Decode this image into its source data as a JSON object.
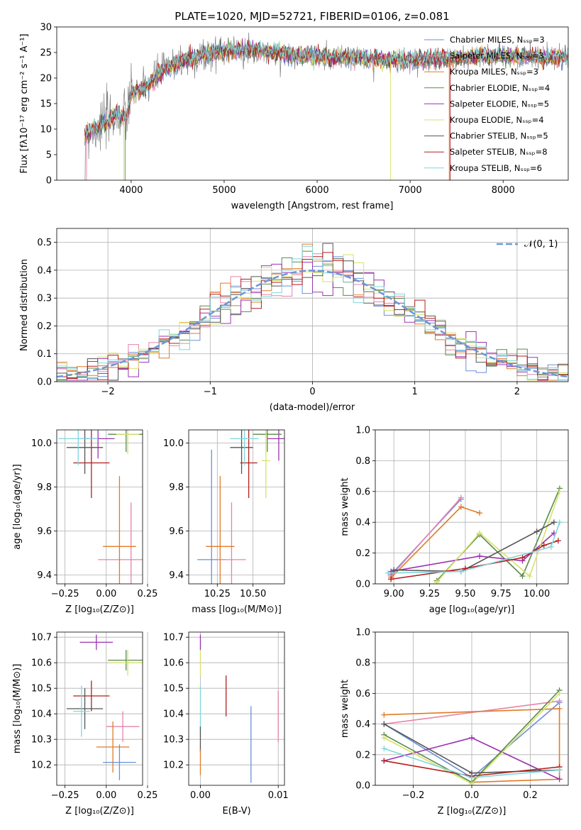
{
  "colors": {
    "chabrier_miles": "#6b8fd6",
    "salpeter_miles": "#e683a9",
    "kroupa_miles": "#e07b28",
    "chabrier_elodie": "#5a8a4a",
    "salpeter_elodie": "#9b33b0",
    "kroupa_elodie": "#d6e26a",
    "chabrier_stelib": "#555555",
    "salpeter_stelib": "#b41e1e",
    "kroupa_stelib": "#7fd6dc"
  },
  "chart_data": [
    {
      "id": "spectrum",
      "type": "line",
      "title": "PLATE=1020, MJD=52721, FIBERID=0106, z=0.081",
      "xlabel": "wavelength [Angstrom, rest frame]",
      "ylabel": "Flux [fλ10⁻¹⁷ erg cm⁻² s⁻¹ A⁻¹]",
      "xlim": [
        3200,
        8700
      ],
      "ylim": [
        0,
        30
      ],
      "xticks": [
        "4000",
        "5000",
        "6000",
        "7000",
        "8000"
      ],
      "yticks": [
        "0",
        "5",
        "10",
        "15",
        "20",
        "25",
        "30"
      ],
      "legend_position": "top-right",
      "envelope": {
        "x": [
          3500,
          3700,
          3850,
          3950,
          4000,
          4150,
          4300,
          4500,
          4700,
          4900,
          5100,
          5300,
          5500,
          5800,
          6100,
          6400,
          6700,
          7000,
          7300,
          7600,
          8000,
          8400,
          8700
        ],
        "y": [
          9,
          11,
          13,
          12,
          17,
          18,
          21,
          23,
          24,
          25,
          25.5,
          25.5,
          25,
          24.5,
          24,
          24,
          23.5,
          23.5,
          23.8,
          24,
          24.5,
          24,
          24
        ]
      },
      "series": [
        {
          "name": "Chabrier MILES, N_SSP=3",
          "color_key": "chabrier_miles"
        },
        {
          "name": "Salpeter MILES, N_SSP=3",
          "color_key": "salpeter_miles"
        },
        {
          "name": "Kroupa MILES, N_SSP=3",
          "color_key": "kroupa_miles"
        },
        {
          "name": "Chabrier ELODIE, N_SSP=4",
          "color_key": "chabrier_elodie"
        },
        {
          "name": "Salpeter ELODIE, N_SSP=5",
          "color_key": "salpeter_elodie"
        },
        {
          "name": "Kroupa ELODIE, N_SSP=4",
          "color_key": "kroupa_elodie"
        },
        {
          "name": "Chabrier STELIB, N_SSP=5",
          "color_key": "chabrier_stelib"
        },
        {
          "name": "Salpeter STELIB, N_SSP=8",
          "color_key": "salpeter_stelib"
        },
        {
          "name": "Kroupa STELIB, N_SSP=6",
          "color_key": "kroupa_stelib"
        }
      ]
    },
    {
      "id": "residuals",
      "type": "bar",
      "xlabel": "(data-model)/error",
      "ylabel": "Normed distribution",
      "xlim": [
        -2.5,
        2.5
      ],
      "ylim": [
        0,
        0.55
      ],
      "xticks": [
        "−2",
        "−1",
        "0",
        "1",
        "2"
      ],
      "yticks": [
        "0.0",
        "0.1",
        "0.2",
        "0.3",
        "0.4",
        "0.5"
      ],
      "legend": "𝒩(0, 1)",
      "legend_position": "top-right",
      "bin_width": 0.1
    },
    {
      "id": "age_vs_Z",
      "type": "scatter",
      "xlabel": "Z [log₁₀(Z/Z⊙)]",
      "ylabel": "age  [log₁₀(age/yr)]",
      "xlim": [
        -0.3,
        0.22
      ],
      "ylim": [
        9.36,
        10.06
      ],
      "xticks": [
        "−0.25",
        "0.00",
        "0.25"
      ],
      "yticks": [
        "9.4",
        "9.6",
        "9.8",
        "10.0"
      ],
      "points": [
        {
          "x": 0.15,
          "y": 9.47,
          "xerr": 0.2,
          "yerr": 0.26,
          "c": "salpeter_miles"
        },
        {
          "x": 0.08,
          "y": 9.53,
          "xerr": 0.1,
          "yerr": 0.32,
          "c": "kroupa_miles"
        },
        {
          "x": -0.09,
          "y": 9.91,
          "xerr": 0.11,
          "yerr": 0.16,
          "c": "salpeter_stelib"
        },
        {
          "x": -0.13,
          "y": 9.98,
          "xerr": 0.11,
          "yerr": 0.12,
          "c": "chabrier_stelib"
        },
        {
          "x": -0.05,
          "y": 10.02,
          "xerr": 0.1,
          "yerr": 0.09,
          "c": "salpeter_elodie"
        },
        {
          "x": -0.17,
          "y": 10.02,
          "xerr": 0.12,
          "yerr": 0.12,
          "c": "kroupa_stelib"
        },
        {
          "x": 0.12,
          "y": 10.04,
          "xerr": 0.11,
          "yerr": 0.08,
          "c": "chabrier_elodie"
        },
        {
          "x": 0.13,
          "y": 10.04,
          "xerr": 0.07,
          "yerr": 0.09,
          "c": "kroupa_elodie"
        }
      ]
    },
    {
      "id": "age_vs_mass",
      "type": "scatter",
      "xlabel": "mass [log₁₀(M/M⊙)]",
      "ylabel": "",
      "xlim": [
        10.05,
        10.72
      ],
      "ylim": [
        9.36,
        10.06
      ],
      "xticks": [
        "10.25",
        "10.50"
      ],
      "yticks": [
        "9.4",
        "9.6",
        "9.8",
        "10.0"
      ],
      "points": [
        {
          "x": 10.21,
          "y": 9.47,
          "xerr": 0.1,
          "yerr": 0.5,
          "c": "chabrier_miles"
        },
        {
          "x": 10.35,
          "y": 9.47,
          "xerr": 0.1,
          "yerr": 0.26,
          "c": "salpeter_miles"
        },
        {
          "x": 10.27,
          "y": 9.53,
          "xerr": 0.1,
          "yerr": 0.32,
          "c": "kroupa_miles"
        },
        {
          "x": 10.47,
          "y": 9.91,
          "xerr": 0.06,
          "yerr": 0.16,
          "c": "salpeter_stelib"
        },
        {
          "x": 10.42,
          "y": 9.98,
          "xerr": 0.08,
          "yerr": 0.12,
          "c": "chabrier_stelib"
        },
        {
          "x": 10.68,
          "y": 10.02,
          "xerr": 0.08,
          "yerr": 0.1,
          "c": "salpeter_elodie"
        },
        {
          "x": 10.44,
          "y": 10.02,
          "xerr": 0.1,
          "yerr": 0.12,
          "c": "kroupa_stelib"
        },
        {
          "x": 10.6,
          "y": 10.04,
          "xerr": 0.1,
          "yerr": 0.08,
          "c": "chabrier_elodie"
        },
        {
          "x": 10.59,
          "y": 9.92,
          "xerr": 0.03,
          "yerr": 0.17,
          "c": "kroupa_elodie"
        }
      ]
    },
    {
      "id": "weight_vs_age",
      "type": "line",
      "xlabel": "age  [log₁₀(age/yr)]",
      "ylabel": "mass weight",
      "xlim": [
        8.87,
        10.22
      ],
      "ylim": [
        0,
        1
      ],
      "xticks": [
        "9.00",
        "9.25",
        "9.50",
        "9.75",
        "10.00"
      ],
      "yticks": [
        "0.0",
        "0.2",
        "0.4",
        "0.6",
        "0.8",
        "1.0"
      ],
      "series": [
        {
          "c": "chabrier_miles",
          "x": [
            8.98,
            9.47
          ],
          "y": [
            0.06,
            0.55
          ]
        },
        {
          "c": "salpeter_miles",
          "x": [
            8.98,
            9.47
          ],
          "y": [
            0.05,
            0.56
          ]
        },
        {
          "c": "kroupa_miles",
          "x": [
            8.98,
            9.47,
            9.6
          ],
          "y": [
            0.04,
            0.5,
            0.46
          ]
        },
        {
          "c": "chabrier_elodie",
          "x": [
            9.3,
            9.6,
            9.9,
            10.16
          ],
          "y": [
            0.02,
            0.32,
            0.05,
            0.62
          ]
        },
        {
          "c": "salpeter_elodie",
          "x": [
            8.98,
            9.6,
            9.9,
            10.12
          ],
          "y": [
            0.08,
            0.18,
            0.15,
            0.33
          ]
        },
        {
          "c": "kroupa_elodie",
          "x": [
            9.3,
            9.6,
            9.95,
            10.16
          ],
          "y": [
            0.01,
            0.33,
            0.05,
            0.6
          ]
        },
        {
          "c": "chabrier_stelib",
          "x": [
            9.0,
            9.47,
            10.0,
            10.12
          ],
          "y": [
            0.09,
            0.08,
            0.34,
            0.4
          ]
        },
        {
          "c": "salpeter_stelib",
          "x": [
            8.98,
            9.5,
            9.9,
            10.05,
            10.15
          ],
          "y": [
            0.03,
            0.1,
            0.17,
            0.25,
            0.28
          ]
        },
        {
          "c": "kroupa_stelib",
          "x": [
            8.96,
            9.47,
            10.1,
            10.16
          ],
          "y": [
            0.07,
            0.08,
            0.24,
            0.4
          ]
        }
      ]
    },
    {
      "id": "mass_vs_Z",
      "type": "scatter",
      "xlabel": "Z [log₁₀(Z/Z⊙)]",
      "ylabel": "mass [log₁₀(M/M⊙)]",
      "xlim": [
        -0.3,
        0.22
      ],
      "ylim": [
        10.12,
        10.72
      ],
      "xticks": [
        "−0.25",
        "0.00",
        "0.25"
      ],
      "yticks": [
        "10.2",
        "10.3",
        "10.4",
        "10.5",
        "10.6",
        "10.7"
      ],
      "points": [
        {
          "x": -0.06,
          "y": 10.68,
          "xerr": 0.1,
          "yerr": 0.03,
          "c": "salpeter_elodie"
        },
        {
          "x": 0.12,
          "y": 10.61,
          "xerr": 0.11,
          "yerr": 0.04,
          "c": "chabrier_elodie"
        },
        {
          "x": 0.13,
          "y": 10.6,
          "xerr": 0.11,
          "yerr": 0.05,
          "c": "kroupa_elodie"
        },
        {
          "x": -0.09,
          "y": 10.47,
          "xerr": 0.11,
          "yerr": 0.06,
          "c": "salpeter_stelib"
        },
        {
          "x": -0.13,
          "y": 10.42,
          "xerr": 0.11,
          "yerr": 0.08,
          "c": "chabrier_stelib"
        },
        {
          "x": 0.1,
          "y": 10.35,
          "xerr": 0.1,
          "yerr": 0.06,
          "c": "salpeter_miles"
        },
        {
          "x": -0.15,
          "y": 10.41,
          "xerr": 0.05,
          "yerr": 0.1,
          "c": "kroupa_stelib"
        },
        {
          "x": 0.04,
          "y": 10.27,
          "xerr": 0.1,
          "yerr": 0.1,
          "c": "kroupa_miles"
        },
        {
          "x": 0.08,
          "y": 10.21,
          "xerr": 0.1,
          "yerr": 0.07,
          "c": "chabrier_miles"
        }
      ]
    },
    {
      "id": "mass_vs_ebv",
      "type": "scatter",
      "xlabel": "E(B-V)",
      "ylabel": "",
      "xlim": [
        -0.0015,
        0.0108
      ],
      "ylim": [
        10.12,
        10.72
      ],
      "xticks": [
        "0.00",
        "0.01"
      ],
      "yticks": [
        "10.2",
        "10.3",
        "10.4",
        "10.5",
        "10.6",
        "10.7"
      ],
      "points": [
        {
          "x": 0.0,
          "y": 10.68,
          "xerr": 0,
          "yerr": 0.03,
          "c": "salpeter_elodie"
        },
        {
          "x": 0.0,
          "y": 10.6,
          "xerr": 0,
          "yerr": 0.05,
          "c": "kroupa_elodie"
        },
        {
          "x": 0.0,
          "y": 10.41,
          "xerr": 0,
          "yerr": 0.1,
          "c": "kroupa_stelib"
        },
        {
          "x": 0.0,
          "y": 10.3,
          "xerr": 0,
          "yerr": 0.05,
          "c": "chabrier_stelib"
        },
        {
          "x": 0.0,
          "y": 10.21,
          "xerr": 0,
          "yerr": 0.05,
          "c": "kroupa_miles"
        },
        {
          "x": 0.0033,
          "y": 10.47,
          "xerr": 0,
          "yerr": 0.08,
          "c": "salpeter_stelib"
        },
        {
          "x": 0.0065,
          "y": 10.28,
          "xerr": 0,
          "yerr": 0.15,
          "c": "chabrier_miles"
        },
        {
          "x": 0.01,
          "y": 10.39,
          "xerr": 0,
          "yerr": 0.1,
          "c": "salpeter_miles"
        }
      ]
    },
    {
      "id": "weight_vs_Z",
      "type": "line",
      "xlabel": "Z [log₁₀(Z/Z⊙)]",
      "ylabel": "mass weight",
      "xlim": [
        -0.33,
        0.33
      ],
      "ylim": [
        0,
        1
      ],
      "xticks": [
        "−0.2",
        "0.0",
        "0.2"
      ],
      "yticks": [
        "0.0",
        "0.2",
        "0.4",
        "0.6",
        "0.8",
        "1.0"
      ],
      "series": [
        {
          "c": "chabrier_miles",
          "x": [
            -0.3,
            0.0,
            0.3
          ],
          "y": [
            0.4,
            0.05,
            0.54
          ]
        },
        {
          "c": "salpeter_miles",
          "x": [
            -0.3,
            0.3
          ],
          "y": [
            0.4,
            0.55
          ]
        },
        {
          "c": "kroupa_miles",
          "x": [
            -0.3,
            0.3,
            0.3,
            0.0
          ],
          "y": [
            0.46,
            0.5,
            0.04,
            0.02
          ]
        },
        {
          "c": "chabrier_elodie",
          "x": [
            -0.3,
            0.0,
            0.3
          ],
          "y": [
            0.33,
            0.02,
            0.62
          ]
        },
        {
          "c": "salpeter_elodie",
          "x": [
            -0.3,
            0.0,
            0.3
          ],
          "y": [
            0.16,
            0.31,
            0.04
          ]
        },
        {
          "c": "kroupa_elodie",
          "x": [
            -0.3,
            0.0,
            0.3
          ],
          "y": [
            0.31,
            0.01,
            0.6
          ]
        },
        {
          "c": "chabrier_stelib",
          "x": [
            -0.3,
            0.0,
            0.3
          ],
          "y": [
            0.4,
            0.08,
            0.1
          ]
        },
        {
          "c": "salpeter_stelib",
          "x": [
            -0.3,
            0.0,
            0.3
          ],
          "y": [
            0.16,
            0.06,
            0.12
          ]
        },
        {
          "c": "kroupa_stelib",
          "x": [
            -0.3,
            0.0,
            0.3
          ],
          "y": [
            0.24,
            0.05,
            0.1
          ]
        }
      ]
    }
  ]
}
